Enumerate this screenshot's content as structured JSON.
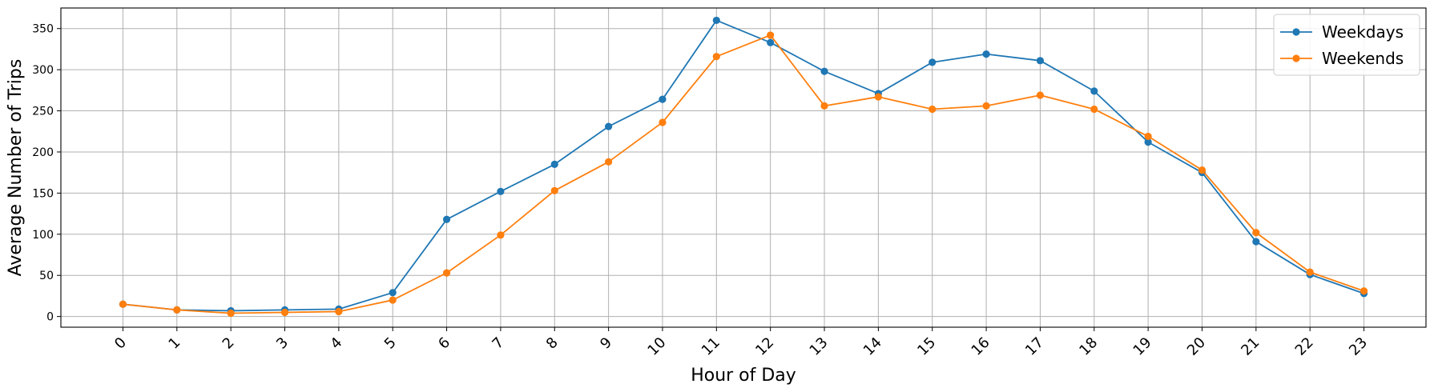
{
  "chart_data": {
    "type": "line",
    "title": "",
    "xlabel": "Hour of Day",
    "ylabel": "Average Number of Trips",
    "x": [
      0,
      1,
      2,
      3,
      4,
      5,
      6,
      7,
      8,
      9,
      10,
      11,
      12,
      13,
      14,
      15,
      16,
      17,
      18,
      19,
      20,
      21,
      22,
      23
    ],
    "x_tick_labels": [
      "0",
      "1",
      "2",
      "3",
      "4",
      "5",
      "6",
      "7",
      "8",
      "9",
      "10",
      "11",
      "12",
      "13",
      "14",
      "15",
      "16",
      "17",
      "18",
      "19",
      "20",
      "21",
      "22",
      "23"
    ],
    "y_ticks": [
      0,
      50,
      100,
      150,
      200,
      250,
      300,
      350
    ],
    "y_tick_labels": [
      "0",
      "50",
      "100",
      "150",
      "200",
      "250",
      "300",
      "350"
    ],
    "xlim": [
      -1.15,
      24.15
    ],
    "ylim": [
      -13,
      375
    ],
    "grid": true,
    "legend_position": "top-right",
    "series": [
      {
        "name": "Weekdays",
        "color": "#1f77b4",
        "values": [
          15,
          8,
          7,
          8,
          9,
          29,
          118,
          152,
          185,
          231,
          264,
          360,
          333,
          298,
          271,
          309,
          319,
          311,
          274,
          212,
          175,
          91,
          51,
          28
        ]
      },
      {
        "name": "Weekends",
        "color": "#ff7f0e",
        "values": [
          15,
          8,
          4,
          5,
          6,
          20,
          53,
          99,
          153,
          188,
          236,
          316,
          342,
          256,
          267,
          252,
          256,
          269,
          252,
          219,
          178,
          102,
          54,
          31
        ]
      }
    ]
  }
}
